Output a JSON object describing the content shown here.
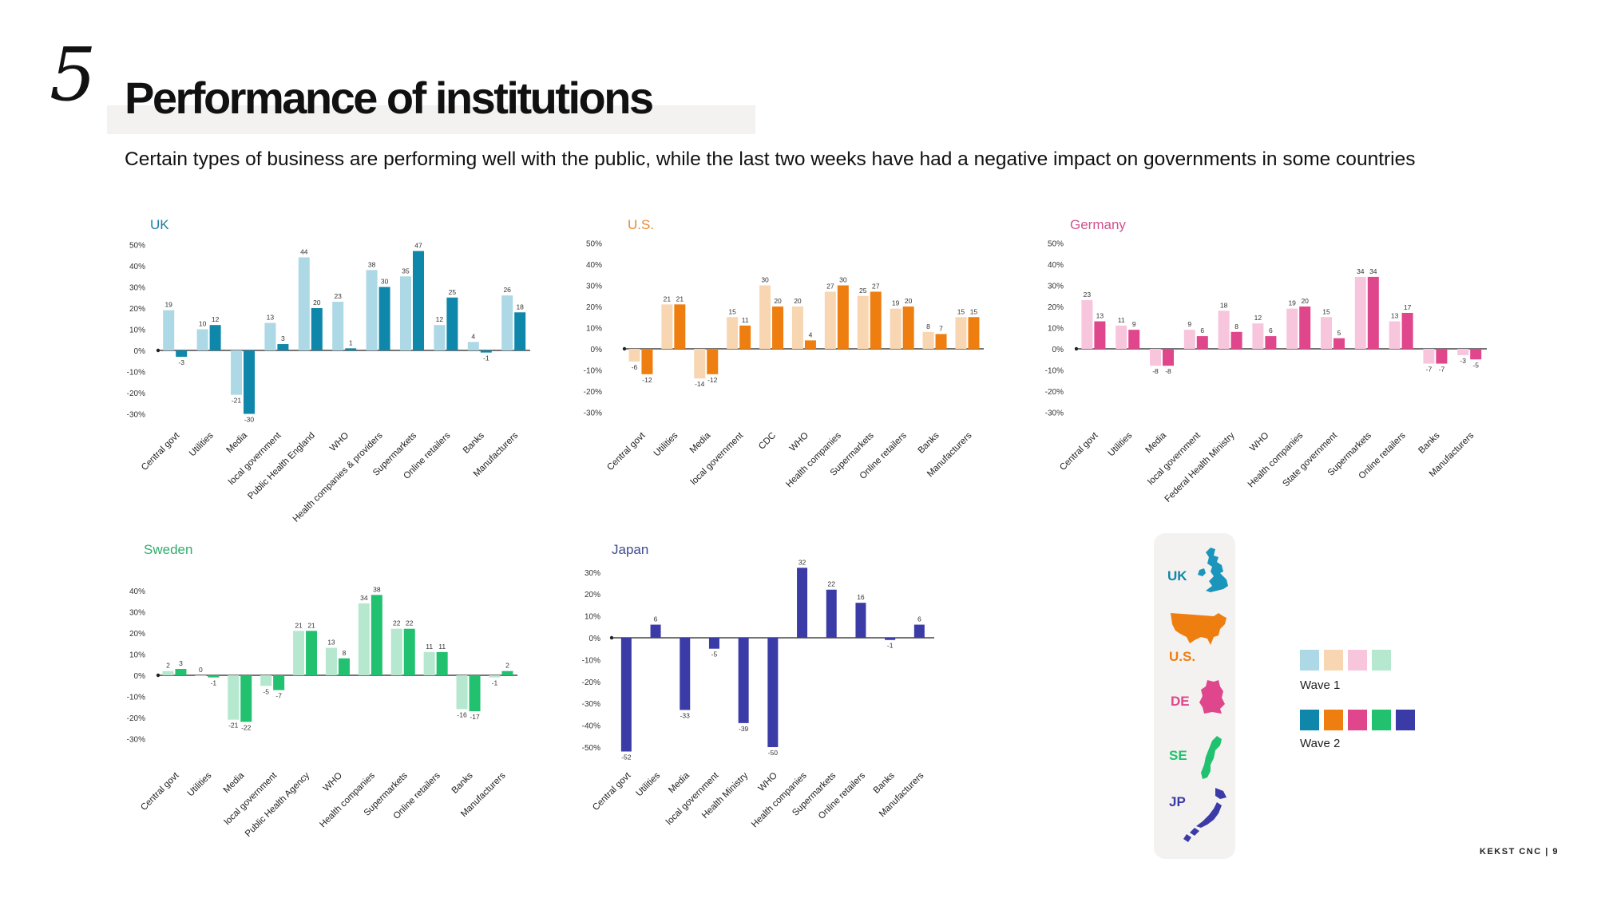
{
  "page": {
    "section_number": "5",
    "title": "Performance of institutions",
    "subtitle": "Certain types of business are performing well with the public, while the last two weeks have had a negative impact on governments in some countries",
    "footer": "KEKST CNC | 9"
  },
  "legend": {
    "countries": [
      {
        "code": "UK",
        "color": "#0f87aa"
      },
      {
        "code": "U.S.",
        "color": "#ef7e10"
      },
      {
        "code": "DE",
        "color": "#e0468c"
      },
      {
        "code": "SE",
        "color": "#22c16f"
      },
      {
        "code": "JP",
        "color": "#3b3ba8"
      }
    ],
    "wave1_label": "Wave 1",
    "wave2_label": "Wave 2",
    "wave1_colors": [
      "#add8e6",
      "#f8d6b2",
      "#f7c6dd",
      "#b5e8cf"
    ],
    "wave2_colors": [
      "#0f87aa",
      "#ef7e10",
      "#e0468c",
      "#22c16f",
      "#3b3ba8"
    ]
  },
  "chart_data": [
    {
      "id": "uk",
      "type": "bar",
      "title": "UK",
      "title_color": "#1b7ea3",
      "wave1_color": "#add8e6",
      "wave2_color": "#0f87aa",
      "ylim": [
        -30,
        50
      ],
      "yticks": [
        "50%",
        "40%",
        "30%",
        "20%",
        "10%",
        "0%",
        "-10%",
        "-20%",
        "-30%"
      ],
      "categories": [
        "Central govt",
        "Utilities",
        "Media",
        "local government",
        "Public Health England",
        "WHO",
        "Health companies & providers",
        "Supermarkets",
        "Online retailers",
        "Banks",
        "Manufacturers"
      ],
      "series": [
        {
          "name": "Wave 1",
          "values": [
            19,
            10,
            -21,
            13,
            44,
            23,
            38,
            35,
            12,
            4,
            26
          ]
        },
        {
          "name": "Wave 2",
          "values": [
            -3,
            12,
            -30,
            3,
            20,
            1,
            30,
            47,
            25,
            -1,
            18
          ]
        }
      ]
    },
    {
      "id": "us",
      "type": "bar",
      "title": "U.S.",
      "title_color": "#e68a2e",
      "wave1_color": "#f8d6b2",
      "wave2_color": "#ef7e10",
      "ylim": [
        -30,
        50
      ],
      "yticks": [
        "50%",
        "40%",
        "30%",
        "20%",
        "10%",
        "0%",
        "-10%",
        "-20%",
        "-30%"
      ],
      "categories": [
        "Central govt",
        "Utilities",
        "Media",
        "local government",
        "CDC",
        "WHO",
        "Health companies",
        "Supermarkets",
        "Online retailers",
        "Banks",
        "Manufacturers"
      ],
      "series": [
        {
          "name": "Wave 1",
          "values": [
            -6,
            21,
            -14,
            15,
            30,
            20,
            27,
            25,
            19,
            8,
            15
          ]
        },
        {
          "name": "Wave 2",
          "values": [
            -12,
            21,
            -12,
            11,
            20,
            4,
            30,
            27,
            20,
            7,
            15
          ]
        }
      ]
    },
    {
      "id": "germany",
      "type": "bar",
      "title": "Germany",
      "title_color": "#d0538e",
      "wave1_color": "#f7c6dd",
      "wave2_color": "#e0468c",
      "ylim": [
        -30,
        50
      ],
      "yticks": [
        "50%",
        "40%",
        "30%",
        "20%",
        "10%",
        "0%",
        "-10%",
        "-20%",
        "-30%"
      ],
      "categories": [
        "Central govt",
        "Utilities",
        "Media",
        "local government",
        "Federal Health Ministry",
        "WHO",
        "Health companies",
        "State government",
        "Supermarkets",
        "Online retailers",
        "Banks",
        "Manufacturers"
      ],
      "series": [
        {
          "name": "Wave 1",
          "values": [
            23,
            11,
            -8,
            9,
            18,
            12,
            19,
            15,
            34,
            13,
            -7,
            -3
          ]
        },
        {
          "name": "Wave 2",
          "values": [
            13,
            9,
            -8,
            6,
            8,
            6,
            20,
            5,
            34,
            17,
            -7,
            -5
          ]
        }
      ]
    },
    {
      "id": "sweden",
      "type": "bar",
      "title": "Sweden",
      "title_color": "#2fae6b",
      "wave1_color": "#b5e8cf",
      "wave2_color": "#22c16f",
      "ylim": [
        -30,
        40
      ],
      "yticks": [
        "40%",
        "30%",
        "20%",
        "10%",
        "0%",
        "-10%",
        "-20%",
        "-30%"
      ],
      "categories": [
        "Central govt",
        "Utilities",
        "Media",
        "local government",
        "Public Health Agency",
        "WHO",
        "Health companies",
        "Supermarkets",
        "Online retailers",
        "Banks",
        "Manufacturers"
      ],
      "series": [
        {
          "name": "Wave 1",
          "values": [
            2,
            0,
            -21,
            -5,
            21,
            13,
            34,
            22,
            11,
            -16,
            -1
          ]
        },
        {
          "name": "Wave 2",
          "values": [
            3,
            -1,
            -22,
            -7,
            21,
            8,
            38,
            22,
            11,
            -17,
            2
          ]
        }
      ]
    },
    {
      "id": "japan",
      "type": "bar",
      "title": "Japan",
      "title_color": "#3e4a8f",
      "wave2_color": "#3b3ba8",
      "ylim": [
        -50,
        30
      ],
      "yticks": [
        "30%",
        "20%",
        "10%",
        "0%",
        "-10%",
        "-20%",
        "-30%",
        "-40%",
        "-50%"
      ],
      "categories": [
        "Central govt",
        "Utilities",
        "Media",
        "local government",
        "Health Ministry",
        "WHO",
        "Health companies",
        "Supermarkets",
        "Online retailers",
        "Banks",
        "Manufacturers"
      ],
      "series": [
        {
          "name": "Wave 2",
          "values": [
            -52,
            6,
            -33,
            -5,
            -39,
            -50,
            32,
            22,
            16,
            -1,
            6
          ]
        }
      ]
    }
  ]
}
